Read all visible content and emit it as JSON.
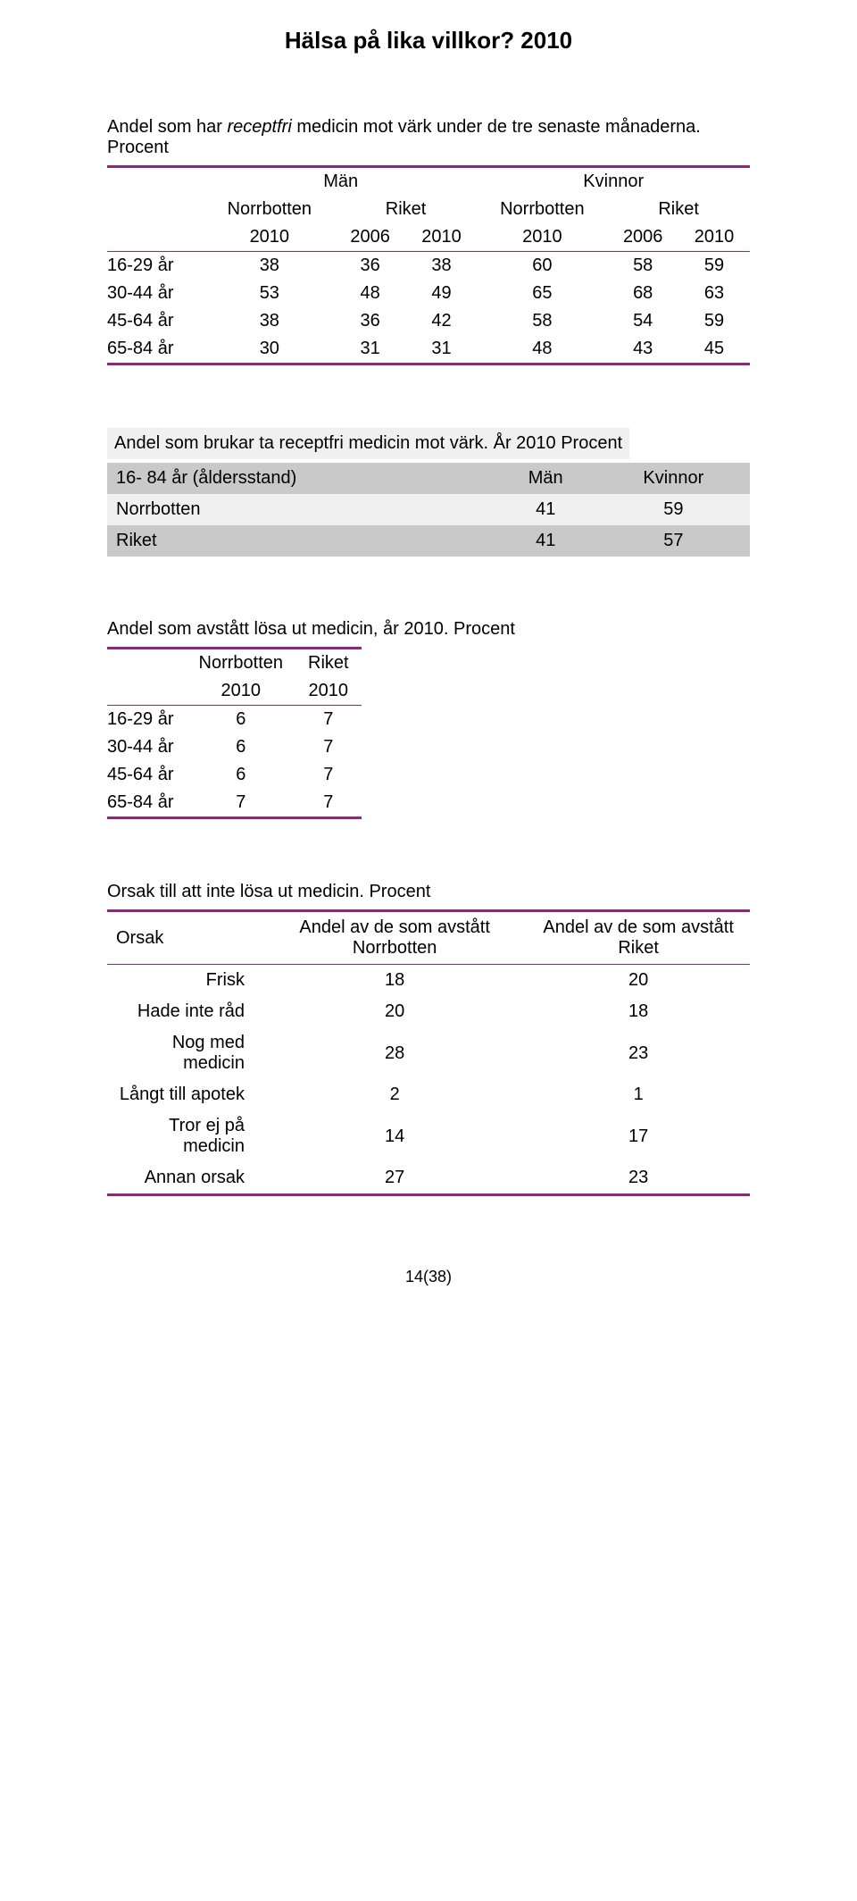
{
  "page_title": "Hälsa på lika villkor? 2010",
  "section1": {
    "desc_prefix": "Andel som har ",
    "desc_italic": "receptfri",
    "desc_suffix": " medicin mot värk under de tre senaste månaderna. Procent",
    "span_headers": [
      "Män",
      "Kvinnor"
    ],
    "col_headers": [
      "Norrbotten",
      "Riket",
      "Norrbotten",
      "Riket"
    ],
    "year_headers": [
      "2010",
      "2006",
      "2010",
      "2010",
      "2006",
      "2010"
    ],
    "rows": [
      {
        "label": "16-29 år",
        "vals": [
          "38",
          "36",
          "38",
          "60",
          "58",
          "59"
        ]
      },
      {
        "label": "30-44 år",
        "vals": [
          "53",
          "48",
          "49",
          "65",
          "68",
          "63"
        ]
      },
      {
        "label": "45-64 år",
        "vals": [
          "38",
          "36",
          "42",
          "58",
          "54",
          "59"
        ]
      },
      {
        "label": "65-84 år",
        "vals": [
          "30",
          "31",
          "31",
          "48",
          "43",
          "45"
        ]
      }
    ]
  },
  "section2": {
    "title": "Andel som brukar ta receptfri medicin mot värk. År 2010 Procent",
    "head": [
      "16- 84 år (åldersstand)",
      "Män",
      "Kvinnor"
    ],
    "rows": [
      {
        "label": "Norrbotten",
        "m": "41",
        "k": "59"
      },
      {
        "label": "Riket",
        "m": "41",
        "k": "57"
      }
    ]
  },
  "section3": {
    "desc": "Andel som avstått lösa ut medicin, år 2010. Procent",
    "col_headers": [
      "Norrbotten",
      "Riket"
    ],
    "year_headers": [
      "2010",
      "2010"
    ],
    "rows": [
      {
        "label": "16-29 år",
        "vals": [
          "6",
          "7"
        ]
      },
      {
        "label": "30-44 år",
        "vals": [
          "6",
          "7"
        ]
      },
      {
        "label": "45-64 år",
        "vals": [
          "6",
          "7"
        ]
      },
      {
        "label": "65-84 år",
        "vals": [
          "7",
          "7"
        ]
      }
    ]
  },
  "section4": {
    "desc": "Orsak till att inte lösa ut medicin. Procent",
    "head": [
      "Orsak",
      "Andel av de som avstått Norrbotten",
      "Andel av de som avstått Riket"
    ],
    "rows": [
      {
        "label": "Frisk",
        "a": "18",
        "b": "20"
      },
      {
        "label": "Hade inte råd",
        "a": "20",
        "b": "18"
      },
      {
        "label": "Nog med medicin",
        "a": "28",
        "b": "23"
      },
      {
        "label": "Långt till apotek",
        "a": "2",
        "b": "1"
      },
      {
        "label": "Tror ej på medicin",
        "a": "14",
        "b": "17"
      },
      {
        "label": "Annan orsak",
        "a": "27",
        "b": "23"
      }
    ]
  },
  "page_number": "14(38)",
  "accent_color": "#8a2a7a"
}
